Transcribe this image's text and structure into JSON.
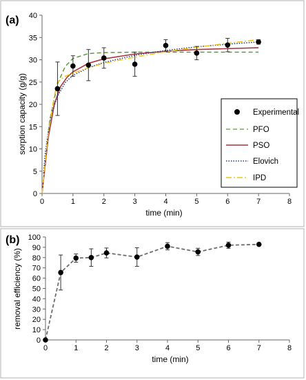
{
  "chart_data": [
    {
      "panel_label": "(a)",
      "type": "scatter",
      "xlabel": "time (min)",
      "ylabel": "sorption capacity (g/g)",
      "xlim": [
        0,
        8
      ],
      "ylim": [
        0,
        40
      ],
      "x_ticks": [
        0,
        1,
        2,
        3,
        4,
        5,
        6,
        7,
        8
      ],
      "y_ticks": [
        0,
        5,
        10,
        15,
        20,
        25,
        30,
        35,
        40
      ],
      "grid": false,
      "legend_position": "right",
      "experimental": {
        "name": "Experimental",
        "x": [
          0.5,
          1,
          1.5,
          2,
          3,
          4,
          5,
          6,
          7
        ],
        "y": [
          23.5,
          28.6,
          28.8,
          30.4,
          29.0,
          33.2,
          31.5,
          33.3,
          34.0
        ],
        "err": [
          6.0,
          2.3,
          3.5,
          2.3,
          2.7,
          1.3,
          1.5,
          1.5,
          0.5
        ]
      },
      "models": [
        {
          "name": "PFO",
          "color": "#5a9a3c",
          "dash": "6,4",
          "x": [
            0,
            0.25,
            0.5,
            0.75,
            1,
            1.5,
            2,
            3,
            4,
            5,
            6,
            7
          ],
          "y": [
            0,
            16.5,
            24.6,
            28.5,
            30.3,
            31.4,
            31.6,
            31.7,
            31.7,
            31.7,
            31.7,
            31.7
          ]
        },
        {
          "name": "PSO",
          "color": "#a8343f",
          "dash": "",
          "x": [
            0,
            0.2,
            0.4,
            0.6,
            0.8,
            1,
            1.5,
            2,
            3,
            4,
            5,
            6,
            7
          ],
          "y": [
            0,
            12.5,
            20.1,
            24.0,
            26.0,
            27.3,
            29.2,
            30.2,
            31.3,
            31.9,
            32.3,
            32.5,
            32.7
          ]
        },
        {
          "name": "Elovich",
          "color": "#1f3a8f",
          "dash": "1.5,2",
          "x": [
            0.05,
            0.1,
            0.2,
            0.3,
            0.5,
            0.75,
            1,
            1.5,
            2,
            3,
            4,
            5,
            6,
            7
          ],
          "y": [
            4.5,
            8.8,
            13.9,
            17.8,
            21.8,
            24.9,
            26.5,
            28.2,
            29.4,
            31.0,
            32.1,
            32.9,
            33.5,
            34.0
          ]
        },
        {
          "name": "IPD",
          "color": "#f0c419",
          "dash": "8,3,2,3",
          "x": [
            0,
            0.2,
            0.4,
            0.5,
            0.75,
            1,
            1.5,
            2,
            3,
            4,
            5,
            6,
            7
          ],
          "y": [
            0,
            13.5,
            22.0,
            25.0,
            26.3,
            27.0,
            28.2,
            29.2,
            30.6,
            31.8,
            32.8,
            33.7,
            34.5
          ]
        }
      ]
    },
    {
      "panel_label": "(b)",
      "type": "line",
      "xlabel": "time (min)",
      "ylabel": "removal efficiency (%)",
      "xlim": [
        0,
        8
      ],
      "ylim": [
        0,
        100
      ],
      "x_ticks": [
        0,
        1,
        2,
        3,
        4,
        5,
        6,
        7,
        8
      ],
      "y_ticks": [
        0,
        10,
        20,
        30,
        40,
        50,
        60,
        70,
        80,
        90,
        100
      ],
      "grid": false,
      "series": [
        {
          "color": "#6d6d6d",
          "x": [
            0,
            0.5,
            1,
            1.5,
            2,
            3,
            4,
            5,
            6,
            7
          ],
          "y": [
            0,
            65.5,
            79.5,
            80.0,
            84.5,
            80.5,
            91.0,
            85.5,
            92.0,
            92.8
          ],
          "err": [
            0,
            17.0,
            4.0,
            8.5,
            4.8,
            9.0,
            3.5,
            3.5,
            3.0,
            1.0
          ]
        }
      ]
    }
  ]
}
